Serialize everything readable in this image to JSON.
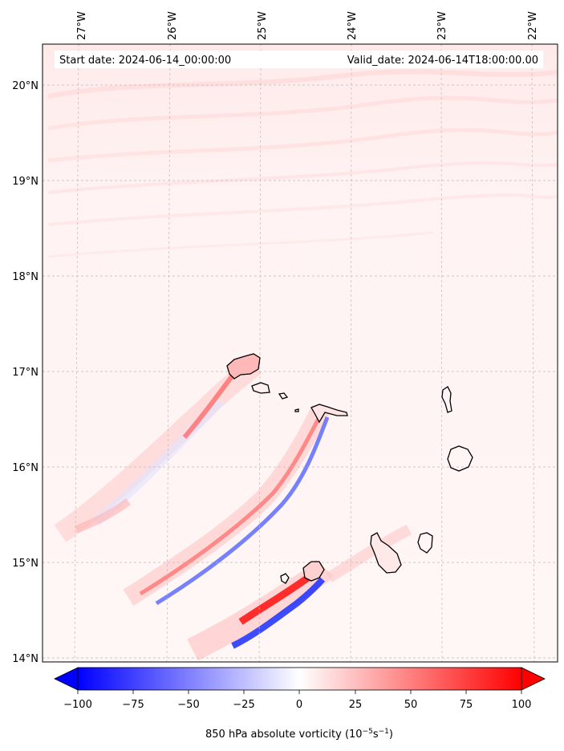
{
  "header": {
    "start_date": "Start date: 2024-06-14_00:00:00",
    "valid_date": "Valid_date: 2024-06-14T18:00:00.00"
  },
  "map": {
    "lon_range": [
      -27.35,
      -21.8
    ],
    "lat_range": [
      13.95,
      20.4
    ],
    "lon_ticks": [
      "27°W",
      "26°W",
      "25°W",
      "24°W",
      "23°W",
      "22°W"
    ],
    "lat_ticks": [
      "20°N",
      "19°N",
      "18°N",
      "17°N",
      "16°N",
      "15°N",
      "14°N"
    ],
    "gridlines": true,
    "islands": [
      "Santo Antão",
      "São Vicente",
      "Santa Luzia",
      "São Nicolau",
      "Sal",
      "Boa Vista",
      "Fogo",
      "Brava",
      "Santiago",
      "Maio"
    ]
  },
  "colorbar": {
    "label": "850 hPa absolute vorticity (10⁻⁵s⁻¹)",
    "label_main": "850 hPa absolute vorticity (10",
    "label_exp": "−5",
    "label_unit": "s",
    "label_unit_exp": "−1",
    "label_close": ")",
    "min": -100,
    "max": 100,
    "ticks": [
      "−100",
      "−75",
      "−50",
      "−25",
      "0",
      "25",
      "50",
      "75",
      "100"
    ],
    "colormap": "bwr",
    "extend": "both",
    "color_low": "#0000ff",
    "color_mid": "#ffffff",
    "color_high": "#ff0000"
  }
}
